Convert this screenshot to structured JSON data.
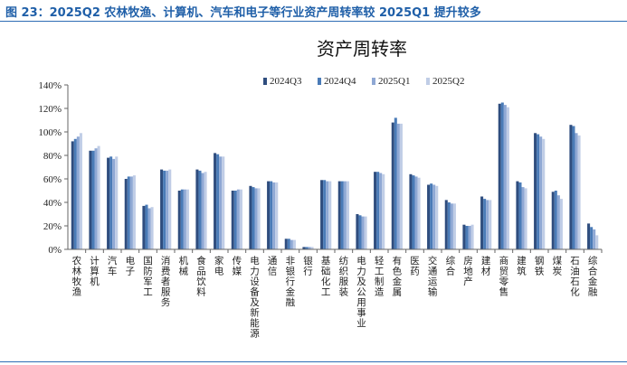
{
  "caption": "图 23：2025Q2 农林牧渔、计算机、汽车和电子等行业资产周转率较 2025Q1 提升较多",
  "colors": [
    "#2f4d7e",
    "#4a7bb7",
    "#8fa8d4",
    "#c0cde6"
  ],
  "chart_data": {
    "type": "bar",
    "title": "资产周转率",
    "xlabel": "",
    "ylabel": "",
    "ylim": [
      0,
      140
    ],
    "yticks": [
      "0%",
      "20%",
      "40%",
      "60%",
      "80%",
      "100%",
      "120%",
      "140%"
    ],
    "legend_position": "top",
    "grid": false,
    "categories": [
      "农林牧渔",
      "计算机",
      "汽车",
      "电子",
      "国防军工",
      "消费者服务",
      "机械",
      "食品饮料",
      "家电",
      "传媒",
      "电力设备及新能源",
      "通信",
      "非银行金融",
      "银行",
      "基础化工",
      "纺织服装",
      "电力及公用事业",
      "轻工制造",
      "有色金属",
      "医药",
      "交通运输",
      "综合",
      "房地产",
      "建材",
      "商贸零售",
      "建筑",
      "钢铁",
      "煤炭",
      "石油石化",
      "综合金融"
    ],
    "series": [
      {
        "name": "2024Q3",
        "values": [
          92,
          84,
          78,
          60,
          37,
          68,
          50,
          68,
          82,
          50,
          54,
          58,
          9,
          2,
          59,
          58,
          30,
          66,
          108,
          64,
          55,
          42,
          21,
          45,
          124,
          58,
          99,
          49,
          106,
          22
        ]
      },
      {
        "name": "2024Q4",
        "values": [
          94,
          84,
          79,
          62,
          38,
          67,
          51,
          67,
          81,
          50,
          53,
          58,
          9,
          2,
          59,
          58,
          29,
          66,
          112,
          63,
          56,
          40,
          20,
          43,
          125,
          57,
          98,
          50,
          105,
          19
        ]
      },
      {
        "name": "2025Q1",
        "values": [
          96,
          86,
          77,
          62,
          35,
          67,
          51,
          65,
          79,
          51,
          52,
          57,
          8,
          2,
          58,
          58,
          28,
          65,
          107,
          62,
          55,
          39,
          20,
          42,
          123,
          53,
          96,
          46,
          99,
          17
        ]
      },
      {
        "name": "2025Q2",
        "values": [
          99,
          88,
          79,
          63,
          36,
          68,
          51,
          66,
          79,
          51,
          52,
          57,
          8,
          2,
          58,
          58,
          28,
          64,
          107,
          61,
          54,
          39,
          21,
          42,
          121,
          52,
          94,
          43,
          97,
          12
        ]
      }
    ]
  }
}
